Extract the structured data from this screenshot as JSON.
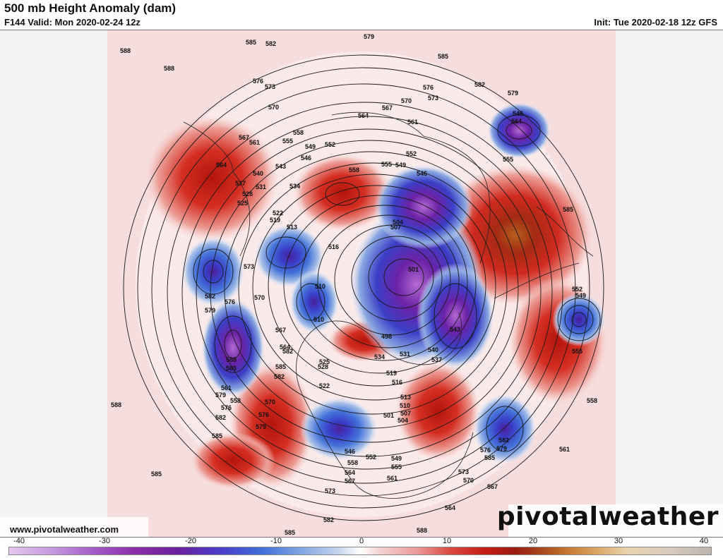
{
  "header": {
    "title": "500 mb Height Anomaly (dam)",
    "valid": "F144 Valid: Mon 2020-02-24 12z",
    "init": "Init: Tue 2020-02-18 12z GFS"
  },
  "footer": {
    "website": "www.pivotalweather.com",
    "brand": "pivotalweather"
  },
  "colorbar": {
    "ticks": [
      "-40",
      "-30",
      "-20",
      "-10",
      "0",
      "10",
      "20",
      "30",
      "40"
    ]
  },
  "contour_labels": [
    "588",
    "585",
    "582",
    "579",
    "585",
    "588",
    "576",
    "573",
    "570",
    "567",
    "564",
    "561",
    "558",
    "555",
    "552",
    "549",
    "546",
    "543",
    "540",
    "537",
    "534",
    "531",
    "528",
    "525",
    "522",
    "519",
    "516",
    "513",
    "510",
    "507",
    "504",
    "501",
    "498",
    "579",
    "582",
    "585",
    "576",
    "573",
    "570",
    "567",
    "564",
    "561",
    "558",
    "555",
    "552",
    "549",
    "546",
    "543",
    "540",
    "537",
    "534",
    "531",
    "528",
    "525",
    "522",
    "519",
    "516",
    "513",
    "510",
    "507",
    "504",
    "501",
    "582",
    "579",
    "576",
    "585",
    "573",
    "570",
    "567",
    "564",
    "561",
    "558",
    "555",
    "552",
    "549",
    "546",
    "564",
    "555",
    "561",
    "579",
    "576",
    "582",
    "585",
    "588",
    "585",
    "582",
    "579",
    "576",
    "573",
    "570",
    "567",
    "564",
    "582",
    "585",
    "582"
  ]
}
